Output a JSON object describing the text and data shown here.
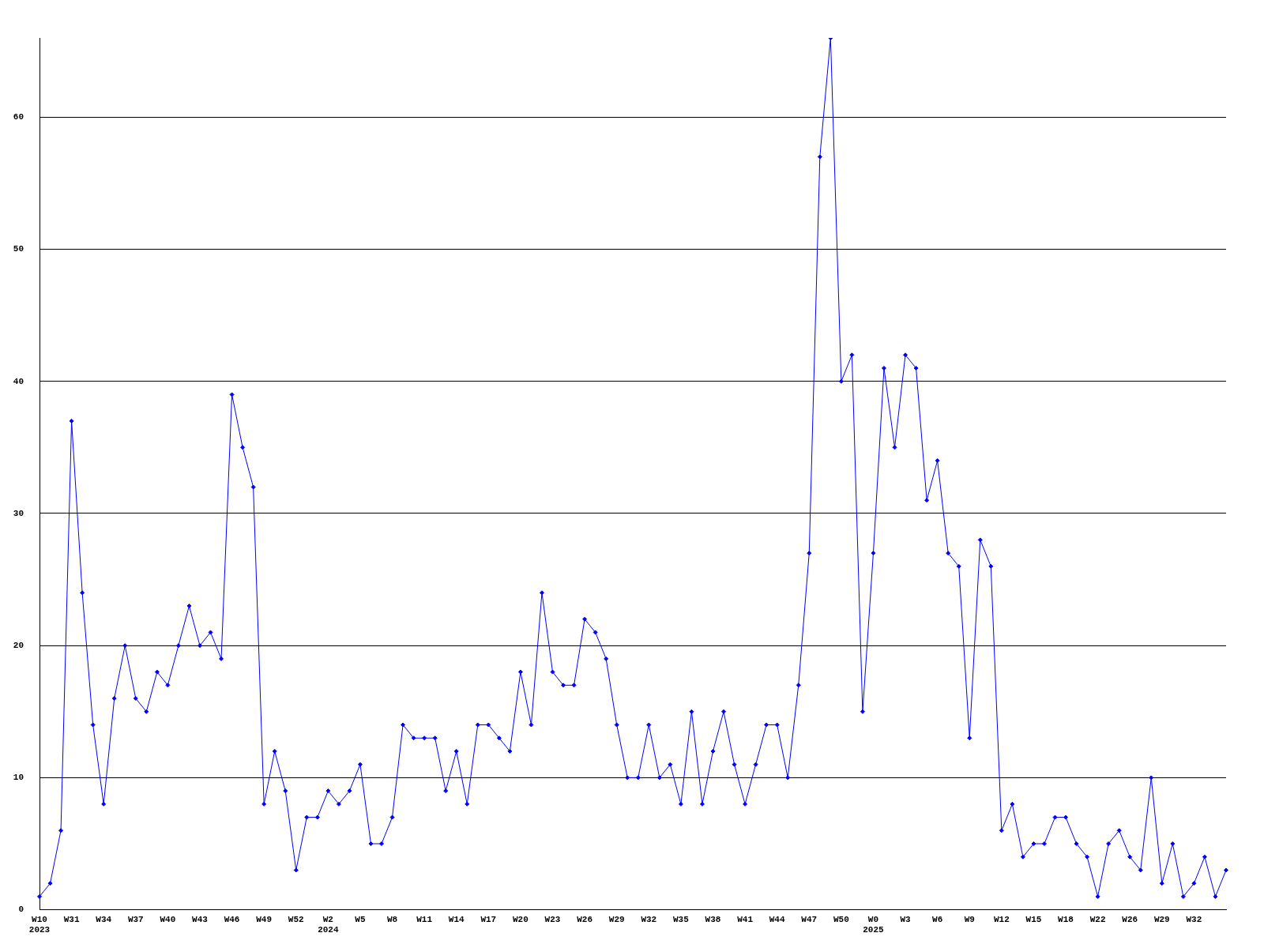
{
  "chart_data": {
    "type": "line",
    "categories": [
      "W10\n2023",
      null,
      null,
      "W31",
      null,
      null,
      "W34",
      null,
      null,
      "W37",
      null,
      null,
      "W40",
      null,
      null,
      "W43",
      null,
      null,
      "W46",
      null,
      null,
      "W49",
      null,
      null,
      "W52",
      null,
      null,
      "W2\n2024",
      null,
      null,
      "W5",
      null,
      null,
      "W8",
      null,
      null,
      "W11",
      null,
      null,
      "W14",
      null,
      null,
      "W17",
      null,
      null,
      "W20",
      null,
      null,
      "W23",
      null,
      null,
      "W26",
      null,
      null,
      "W29",
      null,
      null,
      "W32",
      null,
      null,
      "W35",
      null,
      null,
      "W38",
      null,
      null,
      "W41",
      null,
      null,
      "W44",
      null,
      null,
      "W47",
      null,
      null,
      "W50",
      null,
      null,
      "W0\n2025",
      null,
      null,
      "W3",
      null,
      null,
      "W6",
      null,
      null,
      "W9",
      null,
      null,
      "W12",
      null,
      null,
      "W15",
      null,
      null,
      "W18",
      null,
      null,
      "W22",
      null,
      null,
      "W26",
      null,
      null,
      "W29",
      null,
      null,
      "W32",
      null,
      null,
      null
    ],
    "series": [
      {
        "color": "#0000ff",
        "values": [
          1,
          2,
          6,
          37,
          24,
          14,
          8,
          16,
          20,
          16,
          15,
          18,
          17,
          20,
          23,
          20,
          21,
          19,
          39,
          35,
          32,
          8,
          12,
          9,
          3,
          7,
          7,
          9,
          8,
          9,
          11,
          5,
          5,
          7,
          14,
          13,
          13,
          13,
          9,
          12,
          8,
          14,
          14,
          13,
          12,
          18,
          14,
          24,
          18,
          17,
          17,
          22,
          21,
          19,
          14,
          10,
          10,
          14,
          10,
          11,
          8,
          15,
          8,
          12,
          15,
          11,
          8,
          11,
          14,
          14,
          10,
          17,
          27,
          57,
          66,
          40,
          42,
          15,
          27,
          41,
          35,
          42,
          41,
          31,
          34,
          27,
          26,
          13,
          28,
          26,
          6,
          8,
          4,
          5,
          5,
          7,
          7,
          5,
          4,
          1,
          5,
          6,
          4,
          3,
          10,
          2,
          5,
          1,
          2,
          4,
          1,
          3
        ]
      }
    ],
    "ylim": [
      0,
      66
    ],
    "yticks": [
      0,
      10,
      20,
      30,
      40,
      50,
      60
    ],
    "grid": "y",
    "legend": false,
    "marker": "diamond",
    "line_style": "solid"
  }
}
